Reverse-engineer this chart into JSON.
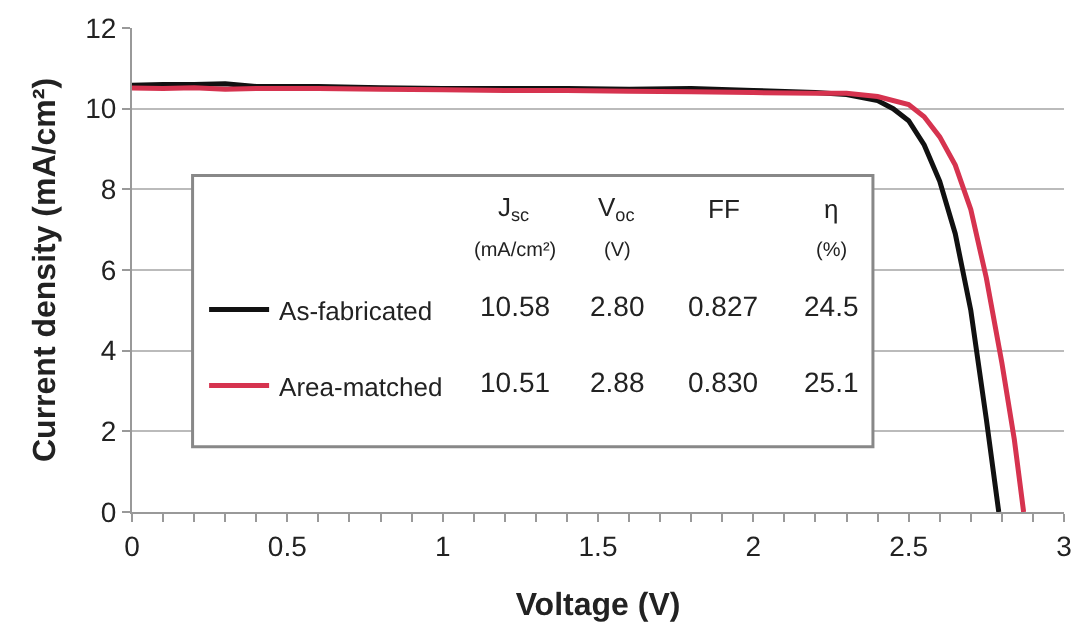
{
  "chart_data": {
    "type": "line",
    "xlabel": "Voltage (V)",
    "ylabel": "Current density (mA/cm²)",
    "series": [
      {
        "name": "As-fabricated",
        "color": "#111111",
        "x": [
          0,
          0.1,
          0.2,
          0.3,
          0.4,
          0.6,
          0.8,
          1.0,
          1.2,
          1.4,
          1.6,
          1.8,
          2.0,
          2.2,
          2.3,
          2.4,
          2.45,
          2.5,
          2.55,
          2.6,
          2.65,
          2.7,
          2.75,
          2.79
        ],
        "values": [
          10.58,
          10.6,
          10.6,
          10.62,
          10.55,
          10.55,
          10.52,
          10.5,
          10.5,
          10.5,
          10.48,
          10.5,
          10.45,
          10.4,
          10.35,
          10.2,
          10.0,
          9.7,
          9.1,
          8.2,
          6.9,
          5.0,
          2.3,
          0
        ]
      },
      {
        "name": "Area-matched",
        "color": "#d6334f",
        "x": [
          0,
          0.1,
          0.2,
          0.3,
          0.4,
          0.6,
          0.8,
          1.0,
          1.2,
          1.4,
          1.6,
          1.8,
          2.0,
          2.2,
          2.3,
          2.4,
          2.5,
          2.55,
          2.6,
          2.65,
          2.7,
          2.75,
          2.8,
          2.84,
          2.87
        ],
        "values": [
          10.51,
          10.5,
          10.52,
          10.48,
          10.5,
          10.5,
          10.48,
          10.47,
          10.45,
          10.45,
          10.43,
          10.42,
          10.4,
          10.38,
          10.38,
          10.3,
          10.1,
          9.8,
          9.3,
          8.6,
          7.5,
          5.8,
          3.7,
          1.8,
          0
        ]
      }
    ],
    "xlim": [
      0,
      3
    ],
    "ylim": [
      0,
      12
    ],
    "xticks": [
      0,
      {
        "value": 0.1,
        "label": null
      },
      {
        "value": 0.2,
        "label": null
      },
      {
        "value": 0.3,
        "label": null
      },
      {
        "value": 0.4,
        "label": null
      },
      0.5,
      {
        "value": 0.6,
        "label": null
      },
      {
        "value": 0.7,
        "label": null
      },
      {
        "value": 0.8,
        "label": null
      },
      {
        "value": 0.9,
        "label": null
      },
      1,
      {
        "value": 1.1,
        "label": null
      },
      {
        "value": 1.2,
        "label": null
      },
      {
        "value": 1.3,
        "label": null
      },
      {
        "value": 1.4,
        "label": null
      },
      1.5,
      {
        "value": 1.6,
        "label": null
      },
      {
        "value": 1.7,
        "label": null
      },
      {
        "value": 1.8,
        "label": null
      },
      {
        "value": 1.9,
        "label": null
      },
      2,
      {
        "value": 2.1,
        "label": null
      },
      {
        "value": 2.2,
        "label": null
      },
      {
        "value": 2.3,
        "label": null
      },
      {
        "value": 2.4,
        "label": null
      },
      2.5,
      {
        "value": 2.6,
        "label": null
      },
      {
        "value": 2.7,
        "label": null
      },
      {
        "value": 2.8,
        "label": null
      },
      {
        "value": 2.9,
        "label": null
      },
      3
    ],
    "yticks": [
      0,
      2,
      4,
      6,
      8,
      10,
      12
    ],
    "grid": "y",
    "legend": "left",
    "marker": "none",
    "line_style": "solid",
    "annotations": [
      "J$_{sc}$",
      "V$_{oc}$",
      "FF",
      "η",
      "(mA/cm²)",
      "(V)",
      "(%)",
      "10.58",
      "2.80",
      "0.827",
      "24.5",
      "10.51",
      "2.88",
      "0.830",
      "25.1"
    ]
  }
}
